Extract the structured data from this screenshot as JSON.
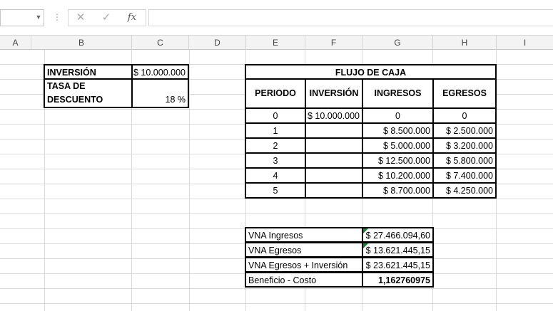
{
  "formula_bar": {
    "name_box": "",
    "cancel_icon": "close-icon",
    "enter_icon": "check-icon",
    "fx_label": "fx",
    "formula": ""
  },
  "columns": [
    "A",
    "B",
    "C",
    "D",
    "E",
    "F",
    "G",
    "H",
    "I"
  ],
  "inputs": {
    "inversion_label": "INVERSIÓN",
    "inversion_value": "$ 10.000.000",
    "tasa_label_1": "TASA DE",
    "tasa_label_2": "DESCUENTO",
    "tasa_value": "18 %"
  },
  "cash_flow": {
    "title": "FLUJO DE CAJA",
    "headers": [
      "PERIODO",
      "INVERSIÓN",
      "INGRESOS",
      "EGRESOS"
    ],
    "rows": [
      [
        "0",
        "$ 10.000.000",
        "0",
        "0"
      ],
      [
        "1",
        "",
        "$ 8.500.000",
        "$ 2.500.000"
      ],
      [
        "2",
        "",
        "$ 5.000.000",
        "$ 3.200.000"
      ],
      [
        "3",
        "",
        "$ 12.500.000",
        "$ 5.800.000"
      ],
      [
        "4",
        "",
        "$ 10.200.000",
        "$ 7.400.000"
      ],
      [
        "5",
        "",
        "$ 8.700.000",
        "$ 4.250.000"
      ]
    ]
  },
  "results": [
    {
      "label": "VNA Ingresos",
      "value": "$ 27.466.094,60"
    },
    {
      "label": "VNA Egresos",
      "value": "$ 13.621.445,15"
    },
    {
      "label": "VNA Egresos + Inversión",
      "value": "$ 23.621.445,15"
    },
    {
      "label": "Beneficio - Costo",
      "value": "1,162760975"
    }
  ],
  "colors": {
    "header_bg": "#f3f3f3",
    "gridline": "#dadada",
    "error_indicator": "#1e7b34"
  }
}
